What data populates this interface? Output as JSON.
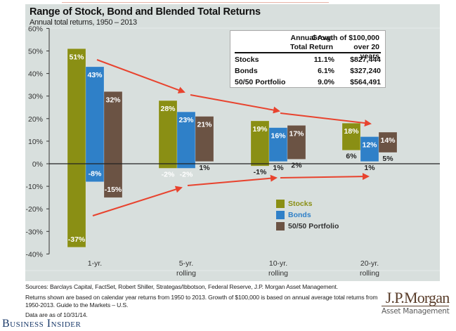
{
  "chart_data": {
    "type": "bar",
    "title": "Range of Stock, Bond and Blended Total Returns",
    "subtitle": "Annual total returns, 1950 – 2013",
    "xlabel": "",
    "ylabel": "",
    "ylim": [
      -40,
      60
    ],
    "yticks": [
      60,
      50,
      40,
      30,
      20,
      10,
      0,
      -10,
      -20,
      -30,
      -40
    ],
    "ytick_labels": [
      "60%",
      "50%",
      "40%",
      "30%",
      "20%",
      "10%",
      "0%",
      "-10%",
      "-20%",
      "-30%",
      "-40%"
    ],
    "categories": [
      {
        "line1": "1-yr.",
        "line2": ""
      },
      {
        "line1": "5-yr.",
        "line2": "rolling"
      },
      {
        "line1": "10-yr.",
        "line2": "rolling"
      },
      {
        "line1": "20-yr.",
        "line2": "rolling"
      }
    ],
    "series": [
      {
        "name": "Stocks",
        "color": "#8a8f14",
        "max": [
          51,
          28,
          19,
          18
        ],
        "min": [
          -37,
          -2,
          -1,
          6
        ],
        "max_labels": [
          "51%",
          "28%",
          "19%",
          "18%"
        ],
        "min_labels": [
          "-37%",
          "-2%",
          "-1%",
          "6%"
        ]
      },
      {
        "name": "Bonds",
        "color": "#2f80c8",
        "max": [
          43,
          23,
          16,
          12
        ],
        "min": [
          -8,
          -2,
          1,
          1
        ],
        "max_labels": [
          "43%",
          "23%",
          "16%",
          "12%"
        ],
        "min_labels": [
          "-8%",
          "-2%",
          "1%",
          "1%"
        ]
      },
      {
        "name": "50/50 Portfolio",
        "color": "#6b5344",
        "max": [
          32,
          21,
          17,
          14
        ],
        "min": [
          -15,
          1,
          2,
          5
        ],
        "max_labels": [
          "32%",
          "21%",
          "17%",
          "14%"
        ],
        "min_labels": [
          "-15%",
          "1%",
          "2%",
          "5%"
        ]
      }
    ],
    "legend_position": "lower-right",
    "annotations": "Red arrows showing range narrowing over longer holding periods",
    "grid": false
  },
  "summary_table": {
    "headers": [
      {
        "line1": "",
        "line2": ""
      },
      {
        "line1": "Annual Avg.",
        "line2": "Total Return"
      },
      {
        "line1": "Growth of $100,000",
        "line2": "over 20 years"
      }
    ],
    "rows": [
      {
        "name": "Stocks",
        "avg": "11.1%",
        "growth": "$827,444"
      },
      {
        "name": "Bonds",
        "avg": "6.1%",
        "growth": "$327,240"
      },
      {
        "name": "50/50 Portfolio",
        "avg": "9.0%",
        "growth": "$564,491"
      }
    ]
  },
  "footer": {
    "sources": "Sources: Barclays Capital, FactSet, Robert Shiller, Strategas/Ibbotson, Federal Reserve, J.P. Morgan Asset Management.",
    "note_line1": "Returns shown are based on calendar year returns from 1950 to 2013. Growth of $100,000 is based on annual average total returns from",
    "note_line2": "1950-2013. Guide to the Markets – U.S.",
    "asof": "Data are as of 10/31/14."
  },
  "branding": {
    "publisher": "Business Insider",
    "logo_name": "J.P.Morgan",
    "logo_sub": "Asset Management"
  },
  "colors": {
    "arrow": "#e8432e",
    "panel": "#d8dfdd"
  }
}
